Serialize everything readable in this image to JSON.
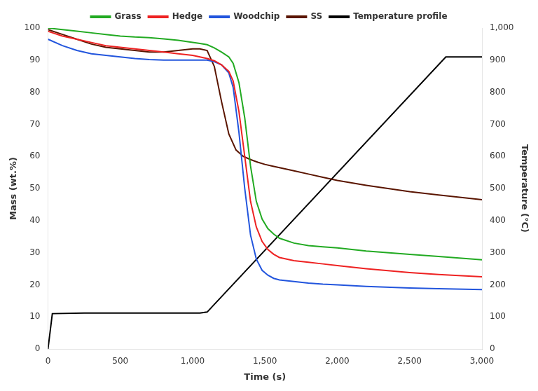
{
  "chart_data": {
    "type": "line",
    "xlabel": "Time (s)",
    "ylabel": "Mass (wt.%)",
    "y2label": "Temperature (°C)",
    "xlim": [
      0,
      3000
    ],
    "xticks": [
      0,
      500,
      1000,
      1500,
      2000,
      2500,
      3000
    ],
    "ylim": [
      0,
      100
    ],
    "yticks": [
      0,
      10,
      20,
      30,
      40,
      50,
      60,
      70,
      80,
      90,
      100
    ],
    "y2lim": [
      0,
      1000
    ],
    "y2ticks": [
      0,
      100,
      200,
      300,
      400,
      500,
      600,
      700,
      800,
      900,
      1000
    ],
    "grid": false,
    "legend": "top",
    "series": [
      {
        "name": "Grass",
        "color": "#22aa22",
        "x": [
          0,
          100,
          200,
          300,
          400,
          500,
          600,
          700,
          800,
          900,
          1000,
          1050,
          1100,
          1150,
          1200,
          1250,
          1280,
          1320,
          1360,
          1400,
          1440,
          1480,
          1520,
          1560,
          1600,
          1700,
          1800,
          1900,
          2000,
          2200,
          2500,
          2700,
          3000
        ],
        "values": [
          100,
          99.5,
          99.0,
          98.5,
          98.0,
          97.5,
          97.2,
          97.0,
          96.6,
          96.2,
          95.5,
          95.2,
          94.8,
          93.8,
          92.5,
          91.0,
          89.0,
          83.0,
          72.0,
          57.0,
          46.0,
          40.5,
          37.5,
          35.8,
          34.5,
          33.0,
          32.2,
          31.8,
          31.5,
          30.5,
          29.5,
          28.8,
          27.8
        ]
      },
      {
        "name": "Hedge",
        "color": "#ee2222",
        "x": [
          0,
          100,
          200,
          300,
          400,
          500,
          600,
          700,
          800,
          900,
          1000,
          1050,
          1100,
          1150,
          1200,
          1250,
          1280,
          1320,
          1360,
          1400,
          1440,
          1480,
          1520,
          1560,
          1600,
          1700,
          1800,
          1900,
          2000,
          2200,
          2500,
          2700,
          3000
        ],
        "values": [
          99.0,
          97.5,
          96.5,
          95.5,
          94.5,
          94.0,
          93.5,
          93.0,
          92.5,
          92.0,
          91.5,
          91.0,
          90.5,
          89.8,
          88.5,
          86.5,
          83.5,
          74.0,
          60.0,
          46.0,
          38.0,
          33.5,
          31.0,
          29.5,
          28.5,
          27.5,
          27.0,
          26.5,
          26.0,
          25.0,
          23.8,
          23.2,
          22.5
        ]
      },
      {
        "name": "Woodchip",
        "color": "#2255dd",
        "x": [
          0,
          100,
          200,
          300,
          400,
          500,
          600,
          700,
          800,
          900,
          1000,
          1050,
          1100,
          1150,
          1200,
          1250,
          1280,
          1320,
          1360,
          1400,
          1440,
          1480,
          1520,
          1560,
          1600,
          1700,
          1800,
          1900,
          2000,
          2200,
          2500,
          2700,
          3000
        ],
        "values": [
          96.5,
          94.5,
          93.0,
          92.0,
          91.5,
          91.0,
          90.5,
          90.2,
          90.0,
          90.0,
          90.0,
          90.0,
          90.0,
          89.5,
          88.5,
          86.0,
          81.5,
          67.5,
          50.0,
          35.5,
          28.0,
          24.5,
          23.0,
          22.0,
          21.5,
          21.0,
          20.5,
          20.2,
          20.0,
          19.5,
          19.0,
          18.8,
          18.5
        ]
      },
      {
        "name": "SS",
        "color": "#5a1500",
        "x": [
          0,
          100,
          200,
          300,
          400,
          500,
          600,
          700,
          800,
          900,
          1000,
          1050,
          1100,
          1150,
          1200,
          1250,
          1300,
          1350,
          1400,
          1450,
          1500,
          1550,
          1600,
          1700,
          1800,
          1900,
          2000,
          2200,
          2500,
          2700,
          3000
        ],
        "values": [
          99.5,
          98.0,
          96.5,
          95.0,
          94.0,
          93.5,
          93.0,
          92.5,
          92.5,
          93.0,
          93.5,
          93.5,
          93.0,
          88.0,
          77.0,
          67.0,
          62.0,
          60.0,
          59.0,
          58.2,
          57.5,
          57.0,
          56.5,
          55.5,
          54.5,
          53.5,
          52.5,
          51.0,
          49.0,
          48.0,
          46.5
        ]
      },
      {
        "name": "Temperature profile",
        "color": "#000000",
        "axis": "y2",
        "x": [
          0,
          30,
          250,
          300,
          1050,
          1100,
          2750,
          2800,
          3000
        ],
        "values": [
          0,
          110,
          112,
          112,
          112,
          115,
          910,
          910,
          910
        ]
      }
    ]
  }
}
